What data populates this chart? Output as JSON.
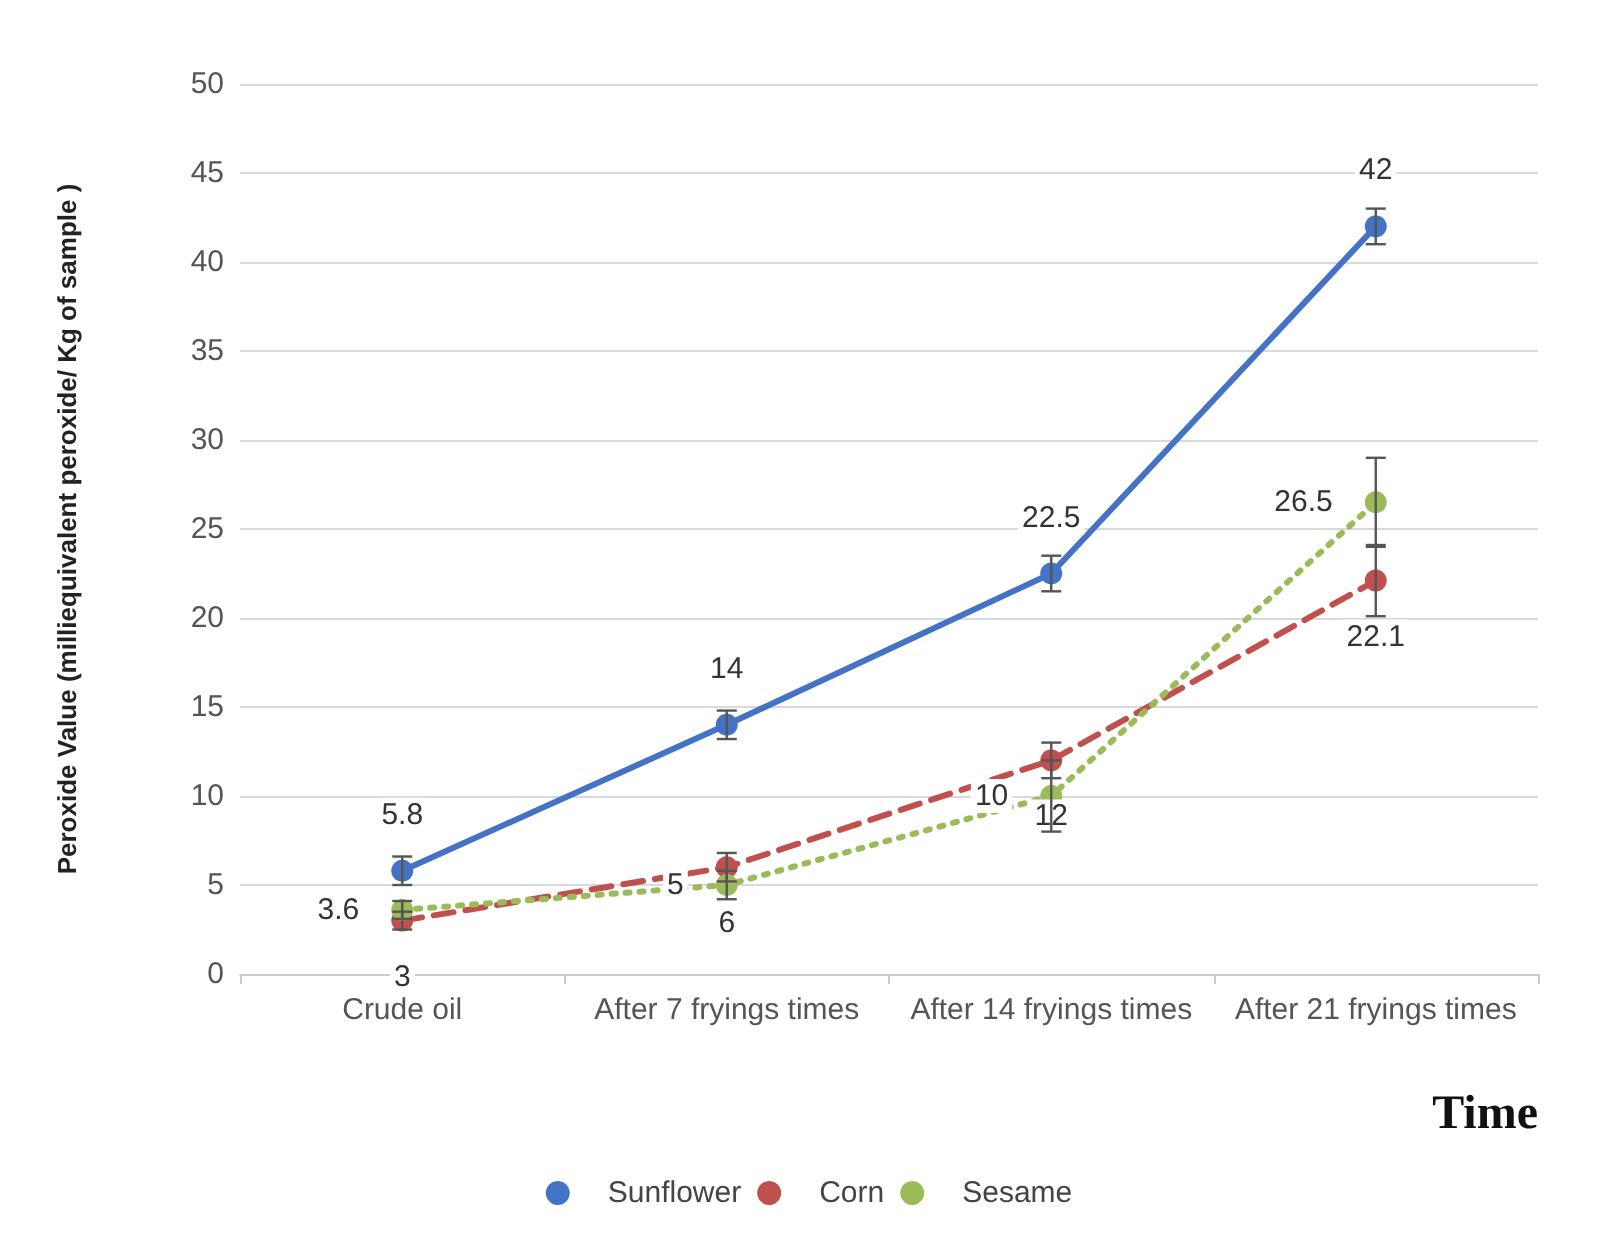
{
  "chart_data": {
    "type": "line",
    "xlabel": "Time",
    "ylabel": "Peroxide Value (milliequivalent peroxide/ Kg of sample )",
    "categories": [
      "Crude oil",
      "After 7 fryings times",
      "After 14 fryings times",
      "After 21 fryings times"
    ],
    "series": [
      {
        "name": "Sunflower",
        "color": "#4472c4",
        "line_style": "solid",
        "values": [
          5.8,
          14,
          22.5,
          42
        ],
        "errors": [
          0.8,
          0.8,
          1,
          1
        ]
      },
      {
        "name": "Corn",
        "color": "#c0504d",
        "line_style": "dashed",
        "values": [
          3,
          6,
          12,
          22.1
        ],
        "errors": [
          0.5,
          0.8,
          1,
          2
        ]
      },
      {
        "name": "Sesame",
        "color": "#9bbb59",
        "line_style": "dotted",
        "values": [
          3.6,
          5,
          10,
          26.5
        ],
        "errors": [
          0.5,
          0.8,
          2,
          2.5
        ]
      }
    ],
    "ylim": [
      0,
      50
    ],
    "yticks": [
      0,
      5,
      10,
      15,
      20,
      25,
      30,
      35,
      40,
      45,
      50
    ],
    "grid": "y",
    "legend": "bottom",
    "marker": "circle",
    "data_labels": true
  }
}
